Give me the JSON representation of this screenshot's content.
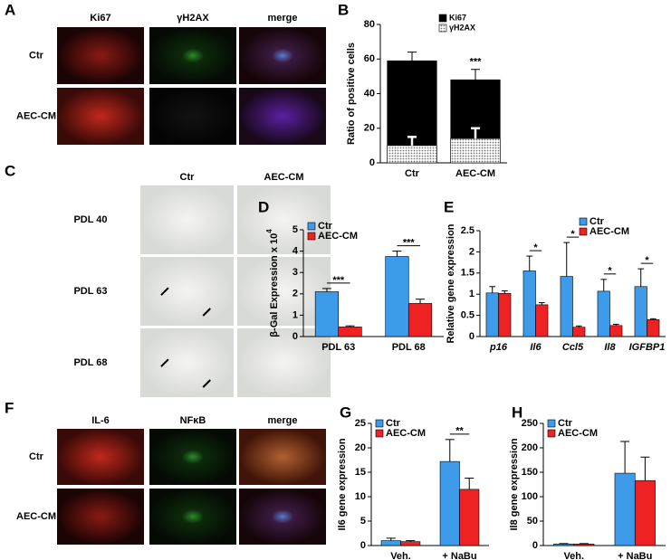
{
  "image_panels": [
    {
      "panel": "A",
      "columns": [
        "Ki67",
        "γH2AX",
        "merge"
      ],
      "rows": [
        "Ctr",
        "AEC-CM"
      ]
    },
    {
      "panel": "C",
      "columns": [
        "Ctr",
        "AEC-CM"
      ],
      "rows": [
        "PDL 40",
        "PDL 63",
        "PDL 68"
      ]
    },
    {
      "panel": "F",
      "columns": [
        "IL-6",
        "NFκB",
        "merge"
      ],
      "rows": [
        "Ctr",
        "AEC-CM"
      ]
    }
  ],
  "chart_data": [
    {
      "type": "bar",
      "panel": "B",
      "barmode": "overlay",
      "ylabel": "Ratio of positive cells",
      "categories": [
        "Ctr",
        "AEC-CM"
      ],
      "ylim": [
        0,
        80
      ],
      "yticks": [
        0,
        20,
        40,
        60,
        80
      ],
      "legend": "upper right",
      "series": [
        {
          "name": "Ki67",
          "color": "#000000",
          "values": [
            59,
            48
          ],
          "errors": [
            5,
            6
          ],
          "significance": [
            null,
            "***"
          ]
        },
        {
          "name": "γH2AX",
          "color": "#cccccc",
          "values": [
            10,
            14
          ],
          "errors": [
            5,
            6
          ],
          "significance": [
            null,
            "*"
          ]
        }
      ]
    },
    {
      "type": "bar",
      "panel": "D",
      "barmode": "group",
      "ylabel": "β-Gal Expression x 10",
      "ylabel_sup": "4",
      "categories": [
        "PDL 63",
        "PDL 68"
      ],
      "ylim": [
        0,
        5
      ],
      "yticks": [
        0,
        1,
        2,
        3,
        4,
        5
      ],
      "legend": "upper left",
      "significance": [
        "***",
        "***"
      ],
      "series": [
        {
          "name": "Ctr",
          "color": "#3d9be9",
          "values": [
            2.1,
            3.75
          ],
          "errors": [
            0.15,
            0.25
          ]
        },
        {
          "name": "AEC-CM",
          "color": "#ee2222",
          "values": [
            0.45,
            1.55
          ],
          "errors": [
            0.05,
            0.2
          ]
        }
      ]
    },
    {
      "type": "bar",
      "panel": "E",
      "barmode": "group",
      "ylabel": "Relative gene expression",
      "italic_categories": true,
      "categories": [
        "p16",
        "Il6",
        "Ccl5",
        "Il8",
        "IGFBP1"
      ],
      "ylim": [
        0,
        2.5
      ],
      "yticks": [
        0,
        0.5,
        1,
        1.5,
        2,
        2.5
      ],
      "legend": "upper right",
      "significance": [
        null,
        "*",
        "*",
        "*",
        "*"
      ],
      "series": [
        {
          "name": "Ctr",
          "color": "#3d9be9",
          "values": [
            1.03,
            1.55,
            1.42,
            1.07,
            1.18
          ],
          "errors": [
            0.15,
            0.35,
            0.8,
            0.28,
            0.42
          ]
        },
        {
          "name": "AEC-CM",
          "color": "#ee2222",
          "values": [
            1.02,
            0.75,
            0.22,
            0.26,
            0.4
          ],
          "errors": [
            0.06,
            0.05,
            0.03,
            0.03,
            0.02
          ]
        }
      ]
    },
    {
      "type": "bar",
      "panel": "G",
      "barmode": "group",
      "ylabel": "Il6 gene expression",
      "categories": [
        "Veh.",
        "+ NaBu"
      ],
      "ylim": [
        0,
        25
      ],
      "yticks": [
        0,
        5,
        10,
        15,
        20,
        25
      ],
      "legend": "upper left",
      "significance": [
        null,
        "**"
      ],
      "series": [
        {
          "name": "Ctr",
          "color": "#3d9be9",
          "values": [
            1,
            17.2
          ],
          "errors": [
            0.5,
            4.5
          ]
        },
        {
          "name": "AEC-CM",
          "color": "#ee2222",
          "values": [
            0.8,
            11.5
          ],
          "errors": [
            0.2,
            2.3
          ]
        }
      ]
    },
    {
      "type": "bar",
      "panel": "H",
      "barmode": "group",
      "ylabel": "Il8 gene expression",
      "categories": [
        "Veh.",
        "+ NaBu"
      ],
      "ylim": [
        0,
        250
      ],
      "yticks": [
        0,
        50,
        100,
        150,
        200,
        250
      ],
      "legend": "upper left",
      "series": [
        {
          "name": "Ctr",
          "color": "#3d9be9",
          "values": [
            3,
            148
          ],
          "errors": [
            1,
            65
          ]
        },
        {
          "name": "AEC-CM",
          "color": "#ee2222",
          "values": [
            3,
            133
          ],
          "errors": [
            1,
            48
          ]
        }
      ]
    }
  ]
}
